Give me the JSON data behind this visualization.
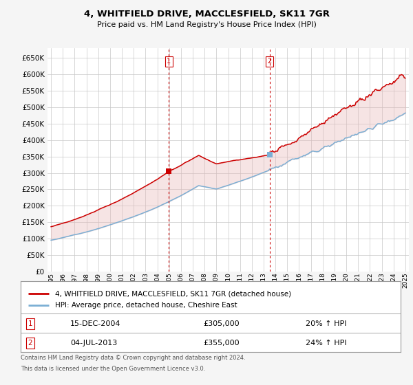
{
  "title": "4, WHITFIELD DRIVE, MACCLESFIELD, SK11 7GR",
  "subtitle": "Price paid vs. HM Land Registry's House Price Index (HPI)",
  "ylim": [
    0,
    680000
  ],
  "yticks": [
    0,
    50000,
    100000,
    150000,
    200000,
    250000,
    300000,
    350000,
    400000,
    450000,
    500000,
    550000,
    600000,
    650000
  ],
  "plot_bg": "#ffffff",
  "grid_color": "#c8c8c8",
  "legend_entry1": "4, WHITFIELD DRIVE, MACCLESFIELD, SK11 7GR (detached house)",
  "legend_entry2": "HPI: Average price, detached house, Cheshire East",
  "sale1_date": "15-DEC-2004",
  "sale1_price": "£305,000",
  "sale1_hpi": "20% ↑ HPI",
  "sale2_date": "04-JUL-2013",
  "sale2_price": "£355,000",
  "sale2_hpi": "24% ↑ HPI",
  "footer": "Contains HM Land Registry data © Crown copyright and database right 2024.\nThis data is licensed under the Open Government Licence v3.0.",
  "line1_color": "#cc0000",
  "line2_color": "#7bafd4",
  "fill1_color": "#e8b4b4",
  "fill2_color": "#b4cce8",
  "vline_color": "#cc0000",
  "sale1_marker_x": 2004.96,
  "sale1_marker_y": 305000,
  "sale2_marker_x": 2013.5,
  "sale2_marker_y": 355000,
  "vline1_x": 2004.96,
  "vline2_x": 2013.5,
  "x_start": 1995,
  "x_end": 2025,
  "xtick_years": [
    1995,
    1996,
    1997,
    1998,
    1999,
    2000,
    2001,
    2002,
    2003,
    2004,
    2005,
    2006,
    2007,
    2008,
    2009,
    2010,
    2011,
    2012,
    2013,
    2014,
    2015,
    2016,
    2017,
    2018,
    2019,
    2020,
    2021,
    2022,
    2023,
    2024,
    2025
  ]
}
